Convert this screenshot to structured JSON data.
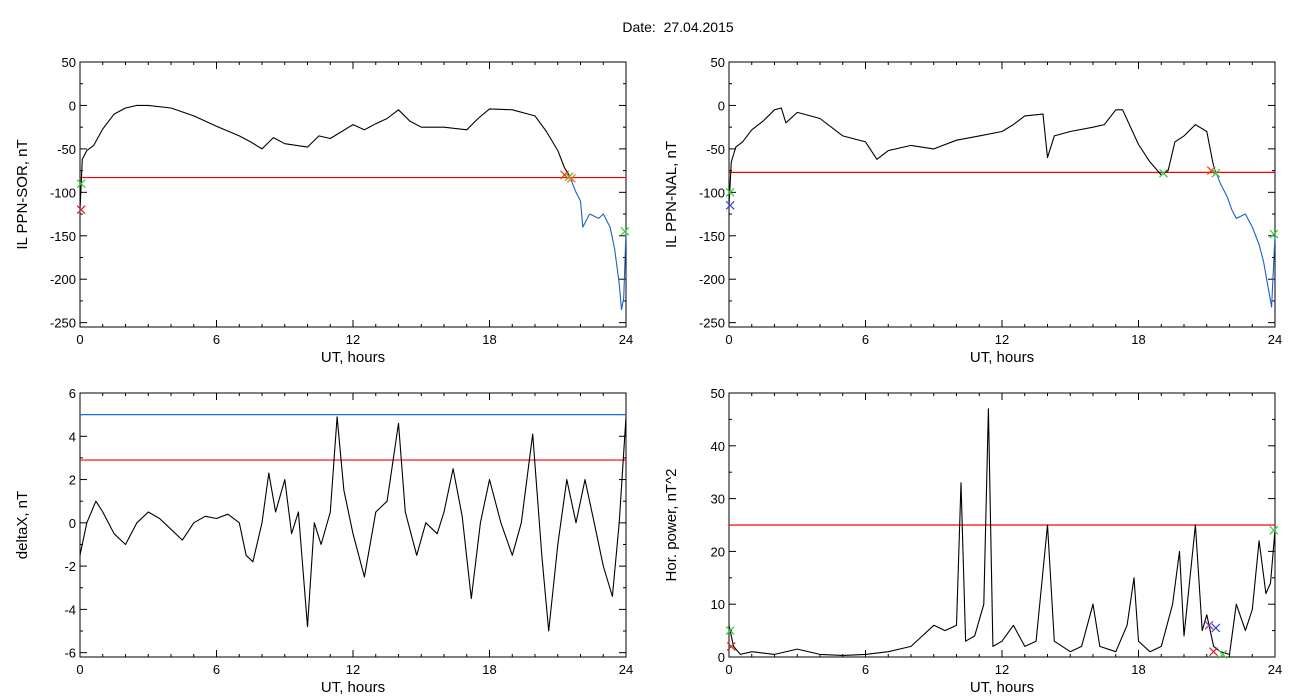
{
  "page": {
    "title": "Date:  27.04.2015"
  },
  "chart_data": [
    {
      "id": "sor",
      "type": "line",
      "ylabel": "IL PPN-SOR, nT",
      "xlabel": "UT, hours",
      "xlim": [
        0,
        24
      ],
      "ylim": [
        -255,
        50
      ],
      "xticks": [
        0,
        6,
        12,
        18,
        24
      ],
      "yticks": [
        -250,
        -200,
        -150,
        -100,
        -50,
        0,
        50
      ],
      "threshold": {
        "value": -83,
        "color": "#ff0000"
      },
      "series": [
        {
          "color": "#000000",
          "points": [
            [
              0,
              -120
            ],
            [
              0.1,
              -62
            ],
            [
              0.3,
              -52
            ],
            [
              0.6,
              -46
            ],
            [
              1,
              -27
            ],
            [
              1.5,
              -10
            ],
            [
              2,
              -3
            ],
            [
              2.5,
              0
            ],
            [
              3,
              0
            ],
            [
              4,
              -3
            ],
            [
              5,
              -12
            ],
            [
              6,
              -24
            ],
            [
              7,
              -35
            ],
            [
              7.5,
              -42
            ],
            [
              8,
              -50
            ],
            [
              8.5,
              -37
            ],
            [
              9,
              -44
            ],
            [
              10,
              -48
            ],
            [
              10.5,
              -35
            ],
            [
              11,
              -38
            ],
            [
              12,
              -22
            ],
            [
              12.5,
              -28
            ],
            [
              13,
              -21
            ],
            [
              13.5,
              -15
            ],
            [
              14,
              -5
            ],
            [
              14.5,
              -18
            ],
            [
              15,
              -25
            ],
            [
              16,
              -25
            ],
            [
              17,
              -28
            ],
            [
              17.5,
              -15
            ],
            [
              18,
              -4
            ],
            [
              19,
              -5
            ],
            [
              20,
              -12
            ],
            [
              20.5,
              -30
            ],
            [
              21,
              -52
            ],
            [
              21.3,
              -72
            ],
            [
              21.5,
              -80
            ]
          ]
        },
        {
          "color": "#1a5fc8",
          "points": [
            [
              21.5,
              -80
            ],
            [
              21.8,
              -100
            ],
            [
              22,
              -110
            ],
            [
              22.1,
              -140
            ],
            [
              22.4,
              -125
            ],
            [
              22.8,
              -130
            ],
            [
              23,
              -125
            ],
            [
              23.3,
              -140
            ],
            [
              23.5,
              -165
            ],
            [
              23.7,
              -205
            ],
            [
              23.8,
              -235
            ],
            [
              23.9,
              -222
            ],
            [
              24,
              -145
            ]
          ]
        }
      ],
      "markers": [
        {
          "x": 0.05,
          "y": -90,
          "color": "#33cc33"
        },
        {
          "x": 0.05,
          "y": -120,
          "color": "#cc2222"
        },
        {
          "x": 21.3,
          "y": -80,
          "color": "#ff3300"
        },
        {
          "x": 21.5,
          "y": -82,
          "color": "#33cc33"
        },
        {
          "x": 21.6,
          "y": -84,
          "color": "#ff6600"
        },
        {
          "x": 23.95,
          "y": -145,
          "color": "#33cc33"
        }
      ]
    },
    {
      "id": "nal",
      "type": "line",
      "ylabel": "IL PPN-NAL, nT",
      "xlabel": "UT, hours",
      "xlim": [
        0,
        24
      ],
      "ylim": [
        -255,
        50
      ],
      "xticks": [
        0,
        6,
        12,
        18,
        24
      ],
      "yticks": [
        -250,
        -200,
        -150,
        -100,
        -50,
        0,
        50
      ],
      "threshold": {
        "value": -77,
        "color": "#ff0000"
      },
      "series": [
        {
          "color": "#000000",
          "points": [
            [
              0,
              -115
            ],
            [
              0.1,
              -65
            ],
            [
              0.3,
              -48
            ],
            [
              0.6,
              -42
            ],
            [
              1,
              -28
            ],
            [
              1.5,
              -18
            ],
            [
              2,
              -5
            ],
            [
              2.3,
              -3
            ],
            [
              2.5,
              -20
            ],
            [
              3,
              -8
            ],
            [
              4,
              -15
            ],
            [
              5,
              -35
            ],
            [
              6,
              -42
            ],
            [
              6.5,
              -62
            ],
            [
              7,
              -52
            ],
            [
              8,
              -46
            ],
            [
              9,
              -50
            ],
            [
              10,
              -40
            ],
            [
              11,
              -35
            ],
            [
              12,
              -30
            ],
            [
              12.5,
              -22
            ],
            [
              13,
              -12
            ],
            [
              13.8,
              -10
            ],
            [
              14,
              -60
            ],
            [
              14.3,
              -35
            ],
            [
              15,
              -30
            ],
            [
              16,
              -25
            ],
            [
              16.5,
              -22
            ],
            [
              17,
              -5
            ],
            [
              17.3,
              -5
            ],
            [
              18,
              -45
            ],
            [
              18.5,
              -65
            ],
            [
              19,
              -80
            ],
            [
              19.3,
              -75
            ],
            [
              19.6,
              -42
            ],
            [
              20,
              -35
            ],
            [
              20.5,
              -22
            ],
            [
              21,
              -30
            ],
            [
              21.3,
              -70
            ]
          ]
        },
        {
          "color": "#1a5fc8",
          "points": [
            [
              21.3,
              -70
            ],
            [
              21.6,
              -90
            ],
            [
              21.9,
              -105
            ],
            [
              22.1,
              -120
            ],
            [
              22.3,
              -130
            ],
            [
              22.7,
              -125
            ],
            [
              23,
              -140
            ],
            [
              23.3,
              -160
            ],
            [
              23.5,
              -180
            ],
            [
              23.7,
              -210
            ],
            [
              23.85,
              -232
            ],
            [
              24,
              -150
            ]
          ]
        }
      ],
      "markers": [
        {
          "x": 0.05,
          "y": -100,
          "color": "#33cc33"
        },
        {
          "x": 0.05,
          "y": -115,
          "color": "#3344cc"
        },
        {
          "x": 19.1,
          "y": -78,
          "color": "#33cc33"
        },
        {
          "x": 21.2,
          "y": -75,
          "color": "#ff3300"
        },
        {
          "x": 21.4,
          "y": -78,
          "color": "#33cc33"
        },
        {
          "x": 23.95,
          "y": -148,
          "color": "#33cc33"
        }
      ]
    },
    {
      "id": "deltax",
      "type": "line",
      "ylabel": "deltaX, nT",
      "xlabel": "UT, hours",
      "xlim": [
        0,
        24
      ],
      "ylim": [
        -6.2,
        6
      ],
      "xticks": [
        0,
        6,
        12,
        18,
        24
      ],
      "yticks": [
        -6,
        -4,
        -2,
        0,
        2,
        4,
        6
      ],
      "threshold": {
        "value": 2.9,
        "color": "#ff0000"
      },
      "threshold2": {
        "value": 5.0,
        "color": "#1a6fe0"
      },
      "series": [
        {
          "color": "#000000",
          "points": [
            [
              0,
              -1.5
            ],
            [
              0.3,
              0
            ],
            [
              0.7,
              1
            ],
            [
              1,
              0.5
            ],
            [
              1.5,
              -0.5
            ],
            [
              2,
              -1
            ],
            [
              2.5,
              0
            ],
            [
              3,
              0.5
            ],
            [
              3.5,
              0.2
            ],
            [
              4,
              -0.3
            ],
            [
              4.5,
              -0.8
            ],
            [
              5,
              0
            ],
            [
              5.5,
              0.3
            ],
            [
              6,
              0.2
            ],
            [
              6.5,
              0.4
            ],
            [
              7,
              0
            ],
            [
              7.3,
              -1.5
            ],
            [
              7.6,
              -1.8
            ],
            [
              8,
              0
            ],
            [
              8.3,
              2.3
            ],
            [
              8.6,
              0.5
            ],
            [
              9,
              2
            ],
            [
              9.3,
              -0.5
            ],
            [
              9.6,
              0.5
            ],
            [
              10,
              -4.8
            ],
            [
              10.3,
              0
            ],
            [
              10.6,
              -1
            ],
            [
              11,
              0.5
            ],
            [
              11.3,
              4.9
            ],
            [
              11.6,
              1.5
            ],
            [
              12,
              -0.5
            ],
            [
              12.5,
              -2.5
            ],
            [
              13,
              0.5
            ],
            [
              13.5,
              1
            ],
            [
              14,
              4.6
            ],
            [
              14.3,
              0.5
            ],
            [
              14.8,
              -1.5
            ],
            [
              15.2,
              0
            ],
            [
              15.7,
              -0.5
            ],
            [
              16,
              0.5
            ],
            [
              16.4,
              2.5
            ],
            [
              16.8,
              0.3
            ],
            [
              17.2,
              -3.5
            ],
            [
              17.6,
              0
            ],
            [
              18,
              2
            ],
            [
              18.5,
              0
            ],
            [
              19,
              -1.5
            ],
            [
              19.4,
              0
            ],
            [
              19.9,
              4.1
            ],
            [
              20.3,
              -1.5
            ],
            [
              20.6,
              -5
            ],
            [
              21,
              -1
            ],
            [
              21.4,
              2
            ],
            [
              21.8,
              0
            ],
            [
              22.2,
              2
            ],
            [
              22.6,
              0
            ],
            [
              23,
              -2
            ],
            [
              23.4,
              -3.4
            ],
            [
              23.7,
              0
            ],
            [
              24,
              4.9
            ]
          ]
        }
      ],
      "markers": []
    },
    {
      "id": "power",
      "type": "line",
      "ylabel": "Hor. power, nT^2",
      "xlabel": "UT, hours",
      "xlim": [
        0,
        24
      ],
      "ylim": [
        0,
        50
      ],
      "xticks": [
        0,
        6,
        12,
        18,
        24
      ],
      "yticks": [
        0,
        10,
        20,
        30,
        40,
        50
      ],
      "threshold": {
        "value": 25,
        "color": "#ff0000"
      },
      "series": [
        {
          "color": "#000000",
          "points": [
            [
              0,
              6
            ],
            [
              0.2,
              2
            ],
            [
              0.5,
              0.5
            ],
            [
              1,
              1
            ],
            [
              2,
              0.5
            ],
            [
              3,
              1.5
            ],
            [
              4,
              0.5
            ],
            [
              5,
              0.3
            ],
            [
              6,
              0.5
            ],
            [
              7,
              1
            ],
            [
              8,
              2
            ],
            [
              8.5,
              4
            ],
            [
              9,
              6
            ],
            [
              9.5,
              5
            ],
            [
              10,
              6
            ],
            [
              10.2,
              33
            ],
            [
              10.4,
              3
            ],
            [
              10.8,
              4
            ],
            [
              11.2,
              10
            ],
            [
              11.4,
              47
            ],
            [
              11.6,
              2
            ],
            [
              12,
              3
            ],
            [
              12.5,
              6
            ],
            [
              13,
              2
            ],
            [
              13.5,
              3
            ],
            [
              14,
              25
            ],
            [
              14.3,
              3
            ],
            [
              15,
              1
            ],
            [
              15.5,
              2
            ],
            [
              16,
              10
            ],
            [
              16.3,
              2
            ],
            [
              17,
              1
            ],
            [
              17.5,
              6
            ],
            [
              17.8,
              15
            ],
            [
              18,
              3
            ],
            [
              18.5,
              1
            ],
            [
              19,
              2
            ],
            [
              19.5,
              10
            ],
            [
              19.8,
              20
            ],
            [
              20,
              4
            ],
            [
              20.5,
              25
            ],
            [
              20.8,
              5
            ],
            [
              21,
              8
            ],
            [
              21.3,
              2
            ],
            [
              21.6,
              1
            ],
            [
              22,
              0.5
            ],
            [
              22.3,
              10
            ],
            [
              22.7,
              5
            ],
            [
              23,
              9
            ],
            [
              23.3,
              22
            ],
            [
              23.6,
              12
            ],
            [
              23.8,
              14
            ],
            [
              24,
              24
            ]
          ]
        }
      ],
      "markers": [
        {
          "x": 0.05,
          "y": 5,
          "color": "#33cc33"
        },
        {
          "x": 0.1,
          "y": 2,
          "color": "#cc2222"
        },
        {
          "x": 21.1,
          "y": 6,
          "color": "#8833aa"
        },
        {
          "x": 21.4,
          "y": 5.5,
          "color": "#3344cc"
        },
        {
          "x": 21.3,
          "y": 1,
          "color": "#cc2222"
        },
        {
          "x": 21.7,
          "y": 0.5,
          "color": "#33cc33"
        },
        {
          "x": 23.95,
          "y": 24,
          "color": "#33cc33"
        }
      ]
    }
  ]
}
